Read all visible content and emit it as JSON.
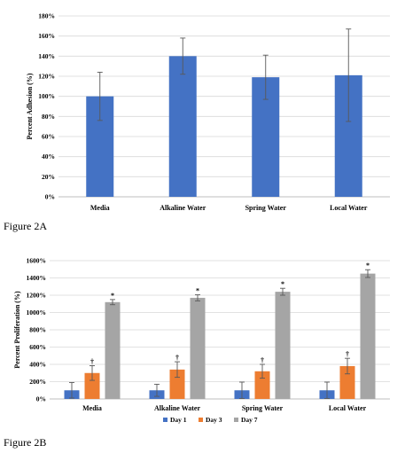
{
  "figure_a_caption": "Figure 2A",
  "figure_b_caption": "Figure 2B",
  "colors": {
    "blue": "#4472C4",
    "orange": "#ED7D31",
    "gray": "#A5A5A5",
    "error_bar": "#7f7f7f"
  },
  "chart_data": [
    {
      "type": "bar",
      "categories": [
        "Media",
        "Alkaline Water",
        "Spring Water",
        "Local Water"
      ],
      "series": [
        {
          "values": [
            100,
            140,
            119,
            121
          ],
          "errors": [
            24,
            18,
            22,
            46
          ]
        }
      ],
      "ylabel": "Percent Adhesion (%)",
      "ylim": [
        0,
        180
      ],
      "yticks": [
        "0%",
        "20%",
        "40%",
        "60%",
        "80%",
        "100%",
        "120%",
        "140%",
        "160%",
        "180%"
      ],
      "grid": true
    },
    {
      "type": "bar",
      "categories": [
        "Media",
        "Alkaline Water",
        "Spring Water",
        "Local Water"
      ],
      "series": [
        {
          "name": "Day 1",
          "values": [
            100,
            100,
            100,
            100
          ],
          "errors": [
            90,
            70,
            95,
            95
          ],
          "markers": [
            "",
            "",
            "",
            ""
          ]
        },
        {
          "name": "Day 3",
          "values": [
            300,
            340,
            320,
            380
          ],
          "errors": [
            85,
            90,
            80,
            90
          ],
          "markers": [
            "†",
            "†",
            "†",
            "†"
          ]
        },
        {
          "name": "Day 7",
          "values": [
            1120,
            1170,
            1240,
            1450
          ],
          "errors": [
            30,
            35,
            40,
            45
          ],
          "markers": [
            "*",
            "*",
            "*",
            "*"
          ]
        }
      ],
      "ylabel": "Percent Proliferation (%)",
      "ylim": [
        0,
        1600
      ],
      "yticks": [
        "0%",
        "200%",
        "400%",
        "600%",
        "800%",
        "1000%",
        "1200%",
        "1400%",
        "1600%"
      ],
      "grid": true,
      "legend_position": "bottom"
    }
  ]
}
